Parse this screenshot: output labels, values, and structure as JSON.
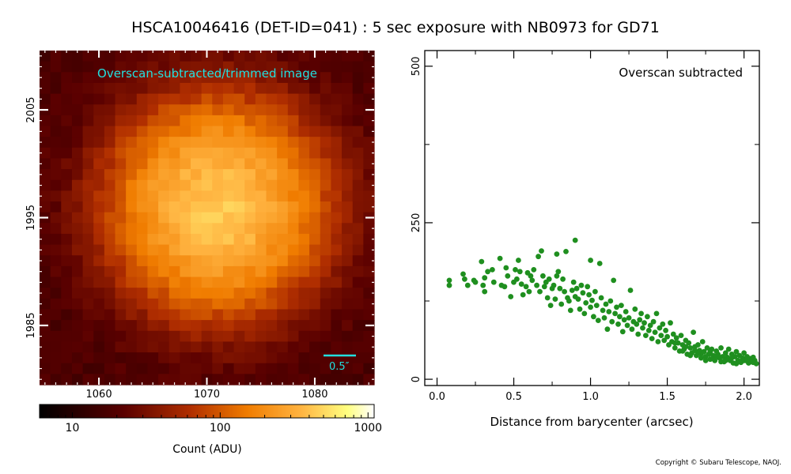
{
  "title": "HSCA10046416 (DET-ID=041) :  5 sec exposure with NB0973 for GD71",
  "copyright": "Copyright © Subaru Telescope, NAOJ.",
  "colors": {
    "scatter": "#1f8f1f",
    "image_label": "#22e0e0",
    "scale_bar": "#22e0e0"
  },
  "chart_data": [
    {
      "type": "heatmap",
      "annotation": "Overscan-subtracted/trimmed image",
      "colormap": "afmhot",
      "x_ticks": [
        {
          "value": 1060,
          "label": "1060"
        },
        {
          "value": 1070,
          "label": "1070"
        },
        {
          "value": 1080,
          "label": "1080"
        }
      ],
      "y_ticks": [
        {
          "value": 1985,
          "label": "1985"
        },
        {
          "value": 1995,
          "label": "1995"
        },
        {
          "value": 2005,
          "label": "2005"
        }
      ],
      "xlim": [
        1054.5,
        1085.5
      ],
      "ylim": [
        1979.5,
        2010.5
      ],
      "source_center": [
        1071,
        1996
      ],
      "peak_counts": 420,
      "background_counts": 18,
      "scale_bar_label": "0.5″"
    },
    {
      "type": "colorbar",
      "scale": "log",
      "range": [
        6,
        1100
      ],
      "ticks": [
        {
          "value": 10,
          "label": "10"
        },
        {
          "value": 100,
          "label": "100"
        },
        {
          "value": 1000,
          "label": "1000"
        }
      ],
      "label": "Count (ADU)"
    },
    {
      "type": "scatter",
      "legend": "Overscan subtracted",
      "xlabel": "Distance from barycenter (arcsec)",
      "ylabel": "",
      "xlim": [
        -0.08,
        2.1
      ],
      "ylim": [
        -10,
        525
      ],
      "x_ticks": [
        {
          "value": 0.0,
          "label": "0.0"
        },
        {
          "value": 0.5,
          "label": "0.5"
        },
        {
          "value": 1.0,
          "label": "1.0"
        },
        {
          "value": 1.5,
          "label": "1.5"
        },
        {
          "value": 2.0,
          "label": "2.0"
        }
      ],
      "y_ticks": [
        {
          "value": 0,
          "label": "0"
        },
        {
          "value": 250,
          "label": "250"
        },
        {
          "value": 500,
          "label": "500"
        }
      ],
      "series": [
        {
          "name": "",
          "points": [
            [
              0.08,
              150
            ],
            [
              0.08,
              158
            ],
            [
              0.17,
              168
            ],
            [
              0.18,
              160
            ],
            [
              0.2,
              150
            ],
            [
              0.24,
              158
            ],
            [
              0.25,
              155
            ],
            [
              0.29,
              188
            ],
            [
              0.3,
              150
            ],
            [
              0.31,
              140
            ],
            [
              0.31,
              162
            ],
            [
              0.33,
              172
            ],
            [
              0.36,
              175
            ],
            [
              0.37,
              155
            ],
            [
              0.41,
              193
            ],
            [
              0.42,
              150
            ],
            [
              0.44,
              148
            ],
            [
              0.45,
              178
            ],
            [
              0.46,
              165
            ],
            [
              0.48,
              132
            ],
            [
              0.5,
              155
            ],
            [
              0.51,
              175
            ],
            [
              0.52,
              160
            ],
            [
              0.53,
              190
            ],
            [
              0.54,
              172
            ],
            [
              0.55,
              152
            ],
            [
              0.56,
              135
            ],
            [
              0.58,
              148
            ],
            [
              0.59,
              170
            ],
            [
              0.6,
              140
            ],
            [
              0.61,
              165
            ],
            [
              0.62,
              158
            ],
            [
              0.63,
              175
            ],
            [
              0.65,
              150
            ],
            [
              0.66,
              196
            ],
            [
              0.67,
              140
            ],
            [
              0.68,
              205
            ],
            [
              0.69,
              165
            ],
            [
              0.7,
              148
            ],
            [
              0.71,
              155
            ],
            [
              0.72,
              130
            ],
            [
              0.73,
              160
            ],
            [
              0.74,
              118
            ],
            [
              0.75,
              145
            ],
            [
              0.76,
              150
            ],
            [
              0.77,
              128
            ],
            [
              0.78,
              165
            ],
            [
              0.78,
              200
            ],
            [
              0.79,
              172
            ],
            [
              0.8,
              145
            ],
            [
              0.81,
              120
            ],
            [
              0.82,
              160
            ],
            [
              0.83,
              140
            ],
            [
              0.84,
              204
            ],
            [
              0.85,
              130
            ],
            [
              0.86,
              125
            ],
            [
              0.87,
              110
            ],
            [
              0.88,
              142
            ],
            [
              0.89,
              155
            ],
            [
              0.9,
              132
            ],
            [
              0.9,
              222
            ],
            [
              0.91,
              145
            ],
            [
              0.92,
              128
            ],
            [
              0.93,
              112
            ],
            [
              0.94,
              150
            ],
            [
              0.95,
              138
            ],
            [
              0.96,
              105
            ],
            [
              0.97,
              122
            ],
            [
              0.98,
              148
            ],
            [
              0.99,
              135
            ],
            [
              1.0,
              190
            ],
            [
              1.0,
              115
            ],
            [
              1.01,
              126
            ],
            [
              1.02,
              100
            ],
            [
              1.03,
              140
            ],
            [
              1.04,
              118
            ],
            [
              1.05,
              94
            ],
            [
              1.06,
              185
            ],
            [
              1.07,
              130
            ],
            [
              1.08,
              110
            ],
            [
              1.09,
              98
            ],
            [
              1.1,
              120
            ],
            [
              1.11,
              80
            ],
            [
              1.12,
              108
            ],
            [
              1.13,
              125
            ],
            [
              1.14,
              92
            ],
            [
              1.15,
              158
            ],
            [
              1.16,
              105
            ],
            [
              1.17,
              115
            ],
            [
              1.18,
              88
            ],
            [
              1.19,
              100
            ],
            [
              1.2,
              118
            ],
            [
              1.21,
              76
            ],
            [
              1.22,
              95
            ],
            [
              1.23,
              108
            ],
            [
              1.24,
              86
            ],
            [
              1.25,
              98
            ],
            [
              1.26,
              142
            ],
            [
              1.27,
              80
            ],
            [
              1.28,
              92
            ],
            [
              1.29,
              112
            ],
            [
              1.3,
              88
            ],
            [
              1.31,
              72
            ],
            [
              1.32,
              95
            ],
            [
              1.33,
              105
            ],
            [
              1.34,
              82
            ],
            [
              1.35,
              90
            ],
            [
              1.36,
              70
            ],
            [
              1.37,
              100
            ],
            [
              1.38,
              78
            ],
            [
              1.39,
              86
            ],
            [
              1.4,
              65
            ],
            [
              1.41,
              92
            ],
            [
              1.42,
              75
            ],
            [
              1.43,
              105
            ],
            [
              1.44,
              60
            ],
            [
              1.45,
              82
            ],
            [
              1.46,
              70
            ],
            [
              1.47,
              88
            ],
            [
              1.48,
              62
            ],
            [
              1.49,
              78
            ],
            [
              1.5,
              68
            ],
            [
              1.51,
              55
            ],
            [
              1.52,
              90
            ],
            [
              1.53,
              60
            ],
            [
              1.54,
              72
            ],
            [
              1.55,
              50
            ],
            [
              1.56,
              66
            ],
            [
              1.57,
              58
            ],
            [
              1.58,
              45
            ],
            [
              1.59,
              70
            ],
            [
              1.6,
              55
            ],
            [
              1.61,
              48
            ],
            [
              1.62,
              62
            ],
            [
              1.63,
              40
            ],
            [
              1.64,
              58
            ],
            [
              1.65,
              50
            ],
            [
              1.66,
              42
            ],
            [
              1.67,
              75
            ],
            [
              1.68,
              52
            ],
            [
              1.69,
              38
            ],
            [
              1.7,
              55
            ],
            [
              1.71,
              46
            ],
            [
              1.72,
              40
            ],
            [
              1.73,
              60
            ],
            [
              1.74,
              44
            ],
            [
              1.75,
              36
            ],
            [
              1.76,
              50
            ],
            [
              1.77,
              40
            ],
            [
              1.78,
              32
            ],
            [
              1.79,
              48
            ],
            [
              1.8,
              38
            ],
            [
              1.81,
              30
            ],
            [
              1.82,
              45
            ],
            [
              1.83,
              40
            ],
            [
              1.84,
              34
            ],
            [
              1.85,
              50
            ],
            [
              1.86,
              36
            ],
            [
              1.87,
              28
            ],
            [
              1.88,
              42
            ],
            [
              1.89,
              35
            ],
            [
              1.9,
              48
            ],
            [
              1.91,
              30
            ],
            [
              1.92,
              40
            ],
            [
              1.93,
              26
            ],
            [
              1.94,
              36
            ],
            [
              1.95,
              44
            ],
            [
              1.96,
              30
            ],
            [
              1.97,
              38
            ],
            [
              1.98,
              27
            ],
            [
              1.99,
              34
            ],
            [
              2.0,
              42
            ],
            [
              2.01,
              30
            ],
            [
              2.02,
              36
            ],
            [
              2.03,
              26
            ],
            [
              2.04,
              33
            ],
            [
              2.05,
              28
            ],
            [
              2.06,
              35
            ],
            [
              2.07,
              30
            ],
            [
              2.08,
              25
            ],
            [
              1.55,
              58
            ],
            [
              1.6,
              45
            ],
            [
              1.65,
              38
            ],
            [
              1.7,
              42
            ],
            [
              1.75,
              30
            ],
            [
              1.8,
              34
            ],
            [
              1.85,
              28
            ],
            [
              1.9,
              32
            ],
            [
              1.95,
              25
            ],
            [
              2.0,
              30
            ],
            [
              1.62,
              52
            ],
            [
              1.68,
              46
            ],
            [
              1.72,
              34
            ],
            [
              1.78,
              44
            ],
            [
              1.82,
              36
            ],
            [
              1.88,
              30
            ],
            [
              1.92,
              34
            ],
            [
              1.97,
              28
            ],
            [
              2.02,
              32
            ],
            [
              2.06,
              27
            ]
          ]
        }
      ]
    }
  ]
}
